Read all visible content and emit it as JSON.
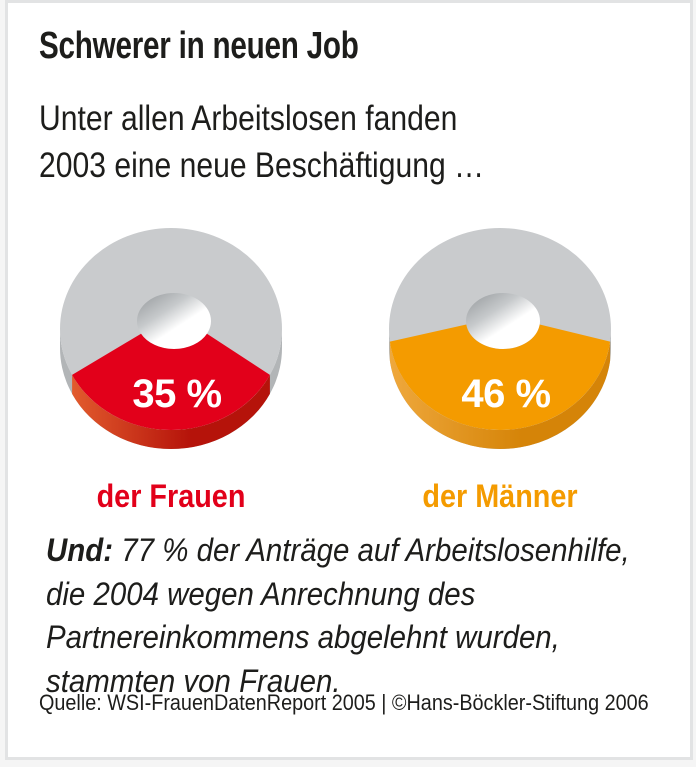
{
  "page": {
    "title": "Schwerer in neuen Job",
    "subtitle_lines": [
      "Unter allen Arbeitslosen fanden",
      "2003 eine neue Beschäftigung …"
    ]
  },
  "chart_data": {
    "type": "pie",
    "variant": "3d-donut-pair",
    "unit": "%",
    "value_label_color": "#ffffff",
    "remainder_color": "#c9cbcd",
    "remainder_side_color": "#b2b5b7",
    "series": [
      {
        "label": "der Frauen",
        "value": 35,
        "value_label": "35 %",
        "color": "#e2001a",
        "depth_from": "#e25b2d",
        "depth_to": "#b5130a"
      },
      {
        "label": "der Männer",
        "value": 46,
        "value_label": "46 %",
        "color": "#f49b00",
        "depth_from": "#efa83c",
        "depth_to": "#d58408"
      }
    ]
  },
  "note": {
    "lead": "Und:",
    "lines": [
      "77 % der Anträge auf Arbeitslosenhilfe,",
      "die 2004 wegen Anrechnung des",
      "Partnereinkommens abgelehnt wurden,",
      "stammten von Frauen."
    ]
  },
  "source": "Quelle: WSI-FrauenDatenReport 2005 | ©Hans-Böckler-Stiftung 2006"
}
